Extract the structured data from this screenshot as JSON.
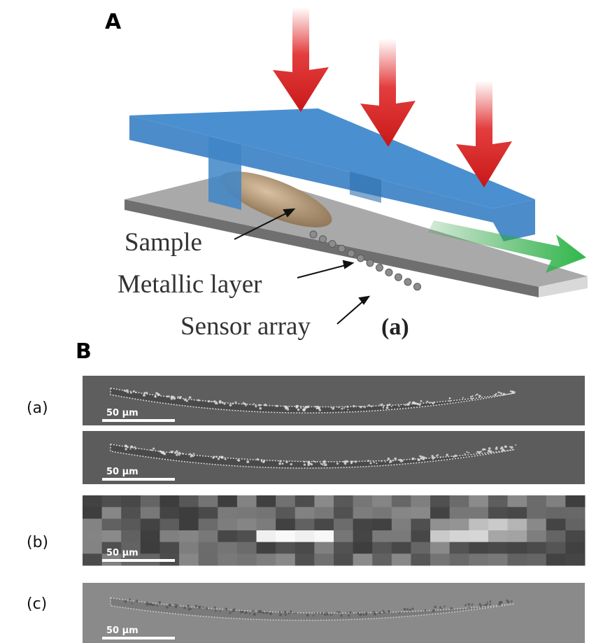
{
  "panel_a": {
    "label": "A",
    "annotations": [
      "Sample",
      "Metallic layer",
      "Sensor array"
    ],
    "caption": "(a)"
  },
  "panel_b": {
    "label": "B",
    "rows": [
      {
        "label": "(a)",
        "scale_bars": [
          "50 μm",
          "50 μm"
        ]
      },
      {
        "label": "(b)",
        "scale_bars": [
          "50 μm"
        ]
      },
      {
        "label": "(c)",
        "scale_bars": [
          "50 μm"
        ]
      }
    ]
  }
}
